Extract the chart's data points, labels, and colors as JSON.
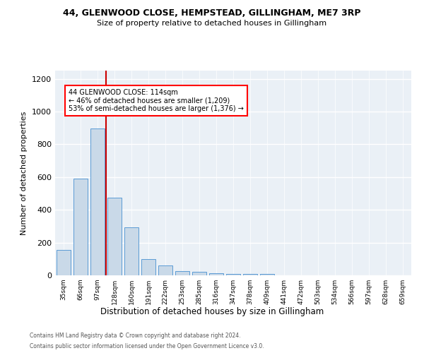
{
  "title1": "44, GLENWOOD CLOSE, HEMPSTEAD, GILLINGHAM, ME7 3RP",
  "title2": "Size of property relative to detached houses in Gillingham",
  "xlabel": "Distribution of detached houses by size in Gillingham",
  "ylabel": "Number of detached properties",
  "annotation_line1": "44 GLENWOOD CLOSE: 114sqm",
  "annotation_line2": "← 46% of detached houses are smaller (1,209)",
  "annotation_line3": "53% of semi-detached houses are larger (1,376) →",
  "bar_labels": [
    "35sqm",
    "66sqm",
    "97sqm",
    "128sqm",
    "160sqm",
    "191sqm",
    "222sqm",
    "253sqm",
    "285sqm",
    "316sqm",
    "347sqm",
    "378sqm",
    "409sqm",
    "441sqm",
    "472sqm",
    "503sqm",
    "534sqm",
    "566sqm",
    "597sqm",
    "628sqm",
    "659sqm"
  ],
  "bar_heights": [
    155,
    590,
    895,
    475,
    295,
    100,
    60,
    27,
    22,
    13,
    10,
    10,
    10,
    0,
    0,
    0,
    0,
    0,
    0,
    0,
    0
  ],
  "bar_color": "#c9d9e8",
  "bar_edge_color": "#5b9bd5",
  "vline_color": "#cc0000",
  "vline_x_index": 2,
  "ylim": [
    0,
    1250
  ],
  "yticks": [
    0,
    200,
    400,
    600,
    800,
    1000,
    1200
  ],
  "background_color": "#eaf0f6",
  "footer1": "Contains HM Land Registry data © Crown copyright and database right 2024.",
  "footer2": "Contains public sector information licensed under the Open Government Licence v3.0."
}
